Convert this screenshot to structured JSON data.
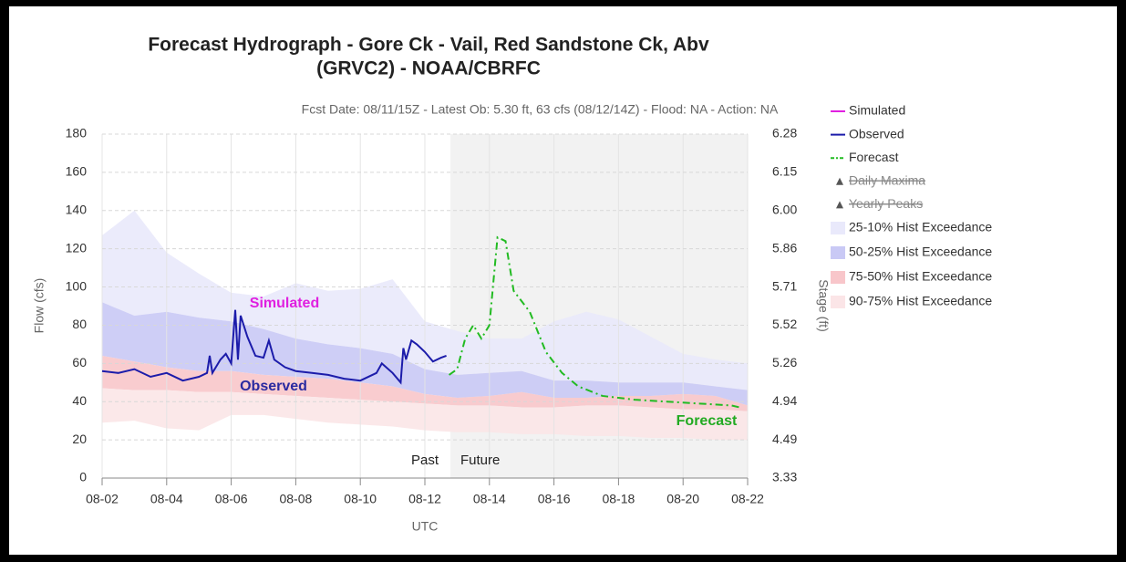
{
  "chart_data": {
    "type": "line",
    "title": [
      "Forecast Hydrograph - Gore Ck - Vail, Red Sandstone Ck, Abv",
      "(GRVC2) - NOAA/CBRFC"
    ],
    "subtitle": "Fcst Date: 08/11/15Z - Latest Ob: 5.30 ft, 63 cfs (08/12/14Z) - Flood: NA - Action: NA",
    "xlabel": "UTC",
    "ylabel": "Flow (cfs)",
    "y2label": "Stage (ft)",
    "xlim": [
      "08-02",
      "08-22"
    ],
    "xticks": [
      "08-02",
      "08-04",
      "08-06",
      "08-08",
      "08-10",
      "08-12",
      "08-14",
      "08-16",
      "08-18",
      "08-20",
      "08-22"
    ],
    "ylim": [
      0,
      180
    ],
    "yticks": [
      0,
      20,
      40,
      60,
      80,
      100,
      120,
      140,
      160,
      180
    ],
    "y2lim": [
      3.33,
      6.28
    ],
    "y2ticks": [
      3.33,
      4.49,
      4.94,
      5.26,
      5.52,
      5.71,
      5.86,
      {
        "value": 6,
        "label": "6.00"
      },
      6.15,
      6.28
    ],
    "grid": true,
    "shaded_region": {
      "from": "08-12 19:00",
      "to": "08-22"
    },
    "annotations": [
      {
        "text": "Simulated",
        "color": "#e020e0"
      },
      {
        "text": "Observed",
        "color": "#2a2aa0"
      },
      {
        "text": "Forecast",
        "color": "#22aa22"
      },
      {
        "text": "Past",
        "color": "#222222"
      },
      {
        "text": "Future",
        "color": "#222222"
      }
    ],
    "band_x": [
      "08-02",
      "08-03",
      "08-04",
      "08-05",
      "08-06",
      "08-07",
      "08-08",
      "08-09",
      "08-10",
      "08-11",
      "08-12",
      "08-13",
      "08-14",
      "08-15",
      "08-16",
      "08-17",
      "08-18",
      "08-19",
      "08-20",
      "08-21",
      "08-22"
    ],
    "bands": [
      {
        "name": "25-10% Hist Exceedance",
        "color": "#e9e9fb",
        "low": [
          92,
          85,
          87,
          84,
          82,
          78,
          73,
          70,
          68,
          65,
          57,
          54,
          55,
          56,
          51,
          51,
          50,
          50,
          50,
          48,
          46
        ],
        "high": [
          127,
          140,
          118,
          107,
          97,
          95,
          102,
          98,
          99,
          104,
          82,
          77,
          73,
          73,
          82,
          87,
          83,
          74,
          65,
          62,
          60
        ]
      },
      {
        "name": "50-25% Hist Exceedance",
        "color": "#c9c9f5",
        "low": [
          64,
          61,
          58,
          56,
          56,
          54,
          53,
          52,
          50,
          48,
          44,
          42,
          43,
          45,
          42,
          42,
          43,
          43,
          44,
          43,
          38
        ],
        "high": [
          92,
          85,
          87,
          84,
          82,
          78,
          73,
          70,
          68,
          65,
          57,
          54,
          55,
          56,
          51,
          51,
          50,
          50,
          50,
          48,
          46
        ]
      },
      {
        "name": "75-50% Hist Exceedance",
        "color": "#f8c6ca",
        "low": [
          47,
          46,
          46,
          45,
          45,
          44,
          43,
          42,
          41,
          40,
          39,
          38,
          38,
          37,
          37,
          38,
          38,
          37,
          36,
          36,
          35
        ],
        "high": [
          64,
          61,
          58,
          56,
          56,
          54,
          53,
          52,
          50,
          48,
          44,
          42,
          43,
          45,
          42,
          42,
          43,
          43,
          44,
          43,
          38
        ]
      },
      {
        "name": "90-75% Hist Exceedance",
        "color": "#fbe5e7",
        "low": [
          29,
          30,
          26,
          25,
          33,
          33,
          31,
          29,
          28,
          27,
          25,
          24,
          24,
          23,
          23,
          22,
          22,
          21,
          21,
          20,
          20
        ],
        "high": [
          47,
          46,
          46,
          45,
          45,
          44,
          43,
          42,
          41,
          40,
          39,
          38,
          38,
          37,
          37,
          38,
          38,
          37,
          36,
          36,
          35
        ]
      }
    ],
    "series": [
      {
        "name": "Simulated",
        "color": "#e020e0",
        "style": "line",
        "x": [],
        "values": []
      },
      {
        "name": "Observed",
        "color": "#1c1caa",
        "style": "line",
        "x": [
          "08-02 00:00",
          "08-02 12:00",
          "08-03 00:00",
          "08-03 12:00",
          "08-04 00:00",
          "08-04 12:00",
          "08-05 00:00",
          "08-05 06:00",
          "08-05 08:00",
          "08-05 10:00",
          "08-05 16:00",
          "08-05 20:00",
          "08-06 00:00",
          "08-06 03:00",
          "08-06 05:00",
          "08-06 07:00",
          "08-06 12:00",
          "08-06 18:00",
          "08-07 00:00",
          "08-07 04:00",
          "08-07 08:00",
          "08-07 16:00",
          "08-08 00:00",
          "08-08 12:00",
          "08-09 00:00",
          "08-09 12:00",
          "08-10 00:00",
          "08-10 12:00",
          "08-10 16:00",
          "08-11 00:00",
          "08-11 06:00",
          "08-11 08:00",
          "08-11 10:00",
          "08-11 14:00",
          "08-11 18:00",
          "08-12 00:00",
          "08-12 06:00",
          "08-12 12:00",
          "08-12 16:00"
        ],
        "values": [
          56,
          55,
          57,
          53,
          55,
          51,
          53,
          55,
          64,
          55,
          62,
          65,
          60,
          88,
          62,
          85,
          74,
          64,
          63,
          72,
          62,
          58,
          56,
          55,
          54,
          52,
          51,
          55,
          60,
          55,
          50,
          68,
          62,
          72,
          70,
          66,
          61,
          63,
          64
        ]
      },
      {
        "name": "Forecast",
        "color": "#22bb22",
        "style": "dashed",
        "x": [
          "08-12 18:00",
          "08-13 00:00",
          "08-13 06:00",
          "08-13 12:00",
          "08-13 18:00",
          "08-14 00:00",
          "08-14 06:00",
          "08-14 12:00",
          "08-14 18:00",
          "08-15 06:00",
          "08-15 18:00",
          "08-16 06:00",
          "08-16 18:00",
          "08-17 12:00",
          "08-18 12:00",
          "08-19 12:00",
          "08-20 12:00",
          "08-21 12:00",
          "08-21 18:00"
        ],
        "values": [
          54,
          57,
          73,
          80,
          73,
          80,
          126,
          124,
          98,
          87,
          66,
          55,
          48,
          43,
          41,
          40,
          39,
          38,
          37
        ]
      },
      {
        "name": "Daily Maxima",
        "color": "#555555",
        "style": "marker",
        "hidden": true,
        "x": [],
        "values": []
      },
      {
        "name": "Yearly Peaks",
        "color": "#555555",
        "style": "marker",
        "hidden": true,
        "x": [],
        "values": []
      }
    ]
  }
}
